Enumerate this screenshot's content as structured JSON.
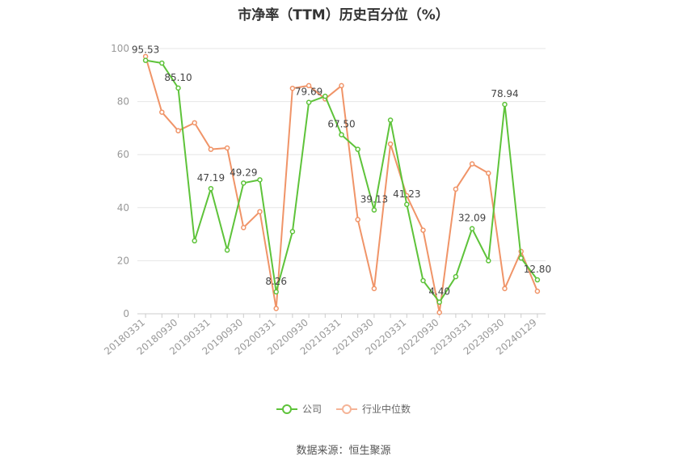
{
  "title": "市净率（TTM）历史百分位（%）",
  "source": "数据来源：恒生聚源",
  "colors": {
    "company": "#5ec33a",
    "industry": "#f09468",
    "grid": "#e6e6e6",
    "axis": "#999999"
  },
  "legend": {
    "company": "公司",
    "industry": "行业中位数"
  },
  "chart_data": {
    "type": "line",
    "ylim": [
      0,
      100
    ],
    "yticks": [
      0,
      20,
      40,
      60,
      80,
      100
    ],
    "x": [
      "20180331",
      "20180630",
      "20180930",
      "20181231",
      "20190331",
      "20190630",
      "20190930",
      "20191231",
      "20200331",
      "20200630",
      "20200930",
      "20201231",
      "20210331",
      "20210630",
      "20210930",
      "20211231",
      "20220331",
      "20220630",
      "20220930",
      "20221231",
      "20230331",
      "20230630",
      "20230930",
      "20231231",
      "20240129"
    ],
    "xtick_labels": [
      "20180331",
      "20180930",
      "20190331",
      "20190930",
      "20200331",
      "20200930",
      "20210331",
      "20210930",
      "20220331",
      "20220930",
      "20230331",
      "20230930",
      "20240129"
    ],
    "series": [
      {
        "name": "公司",
        "values": [
          95.53,
          94.5,
          85.1,
          27.5,
          47.19,
          24.0,
          49.29,
          50.5,
          8.26,
          31.0,
          79.69,
          82.0,
          67.5,
          62.0,
          39.13,
          73.0,
          41.23,
          12.5,
          4.4,
          14.0,
          32.09,
          20.0,
          78.94,
          21.0,
          12.8
        ],
        "labels": {
          "0": "95.53",
          "2": "85.10",
          "4": "47.19",
          "6": "49.29",
          "8": "8.26",
          "10": "79.69",
          "12": "67.50",
          "14": "39.13",
          "16": "41.23",
          "18": "4.40",
          "20": "32.09",
          "22": "78.94",
          "24": "12.80"
        }
      },
      {
        "name": "行业中位数",
        "values": [
          97.0,
          76.0,
          69.0,
          72.0,
          62.0,
          62.5,
          32.5,
          38.5,
          2.0,
          85.0,
          86.0,
          81.0,
          86.0,
          35.5,
          9.5,
          64.0,
          44.5,
          31.5,
          0.5,
          47.0,
          56.5,
          53.0,
          9.5,
          23.5,
          8.5
        ]
      }
    ]
  }
}
